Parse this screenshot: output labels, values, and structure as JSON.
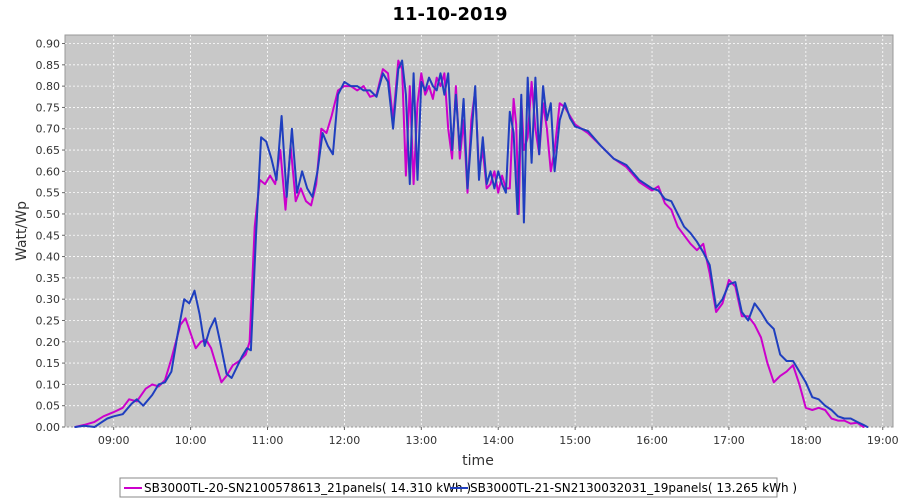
{
  "chart_data": {
    "type": "line",
    "title": "11-10-2019",
    "xlabel": "time",
    "ylabel": "Watt/Wp",
    "xlim": [
      "08:22",
      "19:08"
    ],
    "ylim": [
      0,
      0.92
    ],
    "x_ticks": [
      "09:00",
      "10:00",
      "11:00",
      "12:00",
      "13:00",
      "14:00",
      "15:00",
      "16:00",
      "17:00",
      "18:00",
      "19:00"
    ],
    "y_ticks": [
      "0.00",
      "0.05",
      "0.10",
      "0.15",
      "0.20",
      "0.25",
      "0.30",
      "0.35",
      "0.40",
      "0.45",
      "0.50",
      "0.55",
      "0.60",
      "0.65",
      "0.70",
      "0.75",
      "0.80",
      "0.85",
      "0.90"
    ],
    "grid": true,
    "legend_position": "bottom",
    "series": [
      {
        "name": "SB3000TL-20-SN2100578613_21panels( 14.310 kWh )",
        "color": "#cc00cc",
        "points": [
          [
            "08:30",
            0.0
          ],
          [
            "08:37",
            0.005
          ],
          [
            "08:45",
            0.012
          ],
          [
            "08:52",
            0.025
          ],
          [
            "09:00",
            0.035
          ],
          [
            "09:07",
            0.045
          ],
          [
            "09:12",
            0.065
          ],
          [
            "09:18",
            0.06
          ],
          [
            "09:25",
            0.09
          ],
          [
            "09:30",
            0.1
          ],
          [
            "09:35",
            0.095
          ],
          [
            "09:40",
            0.11
          ],
          [
            "09:45",
            0.16
          ],
          [
            "09:52",
            0.24
          ],
          [
            "09:56",
            0.255
          ],
          [
            "10:00",
            0.22
          ],
          [
            "10:04",
            0.185
          ],
          [
            "10:08",
            0.2
          ],
          [
            "10:12",
            0.205
          ],
          [
            "10:16",
            0.185
          ],
          [
            "10:20",
            0.145
          ],
          [
            "10:24",
            0.105
          ],
          [
            "10:28",
            0.12
          ],
          [
            "10:33",
            0.145
          ],
          [
            "10:38",
            0.155
          ],
          [
            "10:43",
            0.17
          ],
          [
            "10:46",
            0.2
          ],
          [
            "10:50",
            0.47
          ],
          [
            "10:54",
            0.58
          ],
          [
            "10:58",
            0.57
          ],
          [
            "11:02",
            0.59
          ],
          [
            "11:06",
            0.57
          ],
          [
            "11:10",
            0.65
          ],
          [
            "11:14",
            0.51
          ],
          [
            "11:18",
            0.66
          ],
          [
            "11:22",
            0.53
          ],
          [
            "11:26",
            0.56
          ],
          [
            "11:30",
            0.53
          ],
          [
            "11:34",
            0.52
          ],
          [
            "11:38",
            0.57
          ],
          [
            "11:42",
            0.7
          ],
          [
            "11:46",
            0.69
          ],
          [
            "11:50",
            0.73
          ],
          [
            "11:55",
            0.79
          ],
          [
            "12:00",
            0.8
          ],
          [
            "12:05",
            0.8
          ],
          [
            "12:10",
            0.79
          ],
          [
            "12:15",
            0.8
          ],
          [
            "12:20",
            0.775
          ],
          [
            "12:25",
            0.78
          ],
          [
            "12:30",
            0.84
          ],
          [
            "12:34",
            0.83
          ],
          [
            "12:38",
            0.72
          ],
          [
            "12:42",
            0.86
          ],
          [
            "12:45",
            0.84
          ],
          [
            "12:48",
            0.59
          ],
          [
            "12:51",
            0.8
          ],
          [
            "12:54",
            0.57
          ],
          [
            "12:57",
            0.76
          ],
          [
            "13:00",
            0.83
          ],
          [
            "13:03",
            0.78
          ],
          [
            "13:06",
            0.8
          ],
          [
            "13:09",
            0.77
          ],
          [
            "13:12",
            0.82
          ],
          [
            "13:15",
            0.8
          ],
          [
            "13:18",
            0.83
          ],
          [
            "13:21",
            0.7
          ],
          [
            "13:24",
            0.63
          ],
          [
            "13:27",
            0.8
          ],
          [
            "13:30",
            0.63
          ],
          [
            "13:33",
            0.72
          ],
          [
            "13:36",
            0.55
          ],
          [
            "13:39",
            0.72
          ],
          [
            "13:42",
            0.79
          ],
          [
            "13:45",
            0.6
          ],
          [
            "13:48",
            0.65
          ],
          [
            "13:51",
            0.56
          ],
          [
            "13:54",
            0.57
          ],
          [
            "13:57",
            0.6
          ],
          [
            "14:00",
            0.55
          ],
          [
            "14:03",
            0.59
          ],
          [
            "14:06",
            0.56
          ],
          [
            "14:09",
            0.56
          ],
          [
            "14:12",
            0.77
          ],
          [
            "14:14",
            0.71
          ],
          [
            "14:16",
            0.5
          ],
          [
            "14:18",
            0.77
          ],
          [
            "14:20",
            0.65
          ],
          [
            "14:23",
            0.68
          ],
          [
            "14:26",
            0.81
          ],
          [
            "14:29",
            0.7
          ],
          [
            "14:32",
            0.64
          ],
          [
            "14:35",
            0.76
          ],
          [
            "14:38",
            0.7
          ],
          [
            "14:41",
            0.6
          ],
          [
            "14:44",
            0.65
          ],
          [
            "14:48",
            0.76
          ],
          [
            "14:52",
            0.75
          ],
          [
            "14:56",
            0.73
          ],
          [
            "15:00",
            0.71
          ],
          [
            "15:10",
            0.69
          ],
          [
            "15:20",
            0.66
          ],
          [
            "15:30",
            0.63
          ],
          [
            "15:40",
            0.61
          ],
          [
            "15:50",
            0.575
          ],
          [
            "16:00",
            0.555
          ],
          [
            "16:05",
            0.565
          ],
          [
            "16:10",
            0.525
          ],
          [
            "16:15",
            0.51
          ],
          [
            "16:20",
            0.47
          ],
          [
            "16:25",
            0.45
          ],
          [
            "16:30",
            0.43
          ],
          [
            "16:35",
            0.415
          ],
          [
            "16:40",
            0.43
          ],
          [
            "16:45",
            0.36
          ],
          [
            "16:50",
            0.27
          ],
          [
            "16:55",
            0.29
          ],
          [
            "17:00",
            0.345
          ],
          [
            "17:05",
            0.33
          ],
          [
            "17:10",
            0.26
          ],
          [
            "17:15",
            0.26
          ],
          [
            "17:20",
            0.24
          ],
          [
            "17:25",
            0.21
          ],
          [
            "17:30",
            0.15
          ],
          [
            "17:35",
            0.105
          ],
          [
            "17:40",
            0.12
          ],
          [
            "17:45",
            0.13
          ],
          [
            "17:50",
            0.145
          ],
          [
            "17:55",
            0.1
          ],
          [
            "18:00",
            0.045
          ],
          [
            "18:05",
            0.04
          ],
          [
            "18:10",
            0.045
          ],
          [
            "18:15",
            0.04
          ],
          [
            "18:20",
            0.02
          ],
          [
            "18:25",
            0.015
          ],
          [
            "18:30",
            0.015
          ],
          [
            "18:35",
            0.008
          ],
          [
            "18:40",
            0.01
          ],
          [
            "18:45",
            0.0
          ]
        ]
      },
      {
        "name": "SB3000TL-21-SN2130032031_19panels( 13.265 kWh )",
        "color": "#1f3fbf",
        "points": [
          [
            "08:30",
            0.0
          ],
          [
            "08:37",
            0.003
          ],
          [
            "08:45",
            0.0
          ],
          [
            "08:50",
            0.01
          ],
          [
            "08:55",
            0.02
          ],
          [
            "09:00",
            0.025
          ],
          [
            "09:07",
            0.03
          ],
          [
            "09:14",
            0.055
          ],
          [
            "09:18",
            0.065
          ],
          [
            "09:23",
            0.05
          ],
          [
            "09:30",
            0.075
          ],
          [
            "09:35",
            0.1
          ],
          [
            "09:40",
            0.105
          ],
          [
            "09:45",
            0.13
          ],
          [
            "09:50",
            0.22
          ],
          [
            "09:55",
            0.3
          ],
          [
            "09:59",
            0.29
          ],
          [
            "10:03",
            0.32
          ],
          [
            "10:07",
            0.265
          ],
          [
            "10:11",
            0.19
          ],
          [
            "10:15",
            0.23
          ],
          [
            "10:19",
            0.255
          ],
          [
            "10:23",
            0.2
          ],
          [
            "10:28",
            0.125
          ],
          [
            "10:32",
            0.115
          ],
          [
            "10:36",
            0.14
          ],
          [
            "10:40",
            0.165
          ],
          [
            "10:44",
            0.185
          ],
          [
            "10:47",
            0.18
          ],
          [
            "10:51",
            0.45
          ],
          [
            "10:55",
            0.68
          ],
          [
            "10:59",
            0.67
          ],
          [
            "11:03",
            0.63
          ],
          [
            "11:07",
            0.58
          ],
          [
            "11:11",
            0.73
          ],
          [
            "11:15",
            0.54
          ],
          [
            "11:19",
            0.7
          ],
          [
            "11:23",
            0.55
          ],
          [
            "11:27",
            0.6
          ],
          [
            "11:31",
            0.56
          ],
          [
            "11:35",
            0.54
          ],
          [
            "11:39",
            0.6
          ],
          [
            "11:43",
            0.69
          ],
          [
            "11:47",
            0.66
          ],
          [
            "11:51",
            0.64
          ],
          [
            "11:55",
            0.78
          ],
          [
            "12:00",
            0.81
          ],
          [
            "12:05",
            0.8
          ],
          [
            "12:10",
            0.8
          ],
          [
            "12:15",
            0.79
          ],
          [
            "12:20",
            0.79
          ],
          [
            "12:25",
            0.775
          ],
          [
            "12:30",
            0.83
          ],
          [
            "12:34",
            0.81
          ],
          [
            "12:38",
            0.7
          ],
          [
            "12:42",
            0.84
          ],
          [
            "12:45",
            0.86
          ],
          [
            "12:48",
            0.78
          ],
          [
            "12:51",
            0.57
          ],
          [
            "12:54",
            0.83
          ],
          [
            "12:57",
            0.58
          ],
          [
            "13:00",
            0.81
          ],
          [
            "13:03",
            0.79
          ],
          [
            "13:06",
            0.82
          ],
          [
            "13:09",
            0.8
          ],
          [
            "13:12",
            0.79
          ],
          [
            "13:15",
            0.83
          ],
          [
            "13:18",
            0.78
          ],
          [
            "13:21",
            0.83
          ],
          [
            "13:24",
            0.65
          ],
          [
            "13:27",
            0.78
          ],
          [
            "13:30",
            0.65
          ],
          [
            "13:33",
            0.77
          ],
          [
            "13:36",
            0.56
          ],
          [
            "13:39",
            0.68
          ],
          [
            "13:42",
            0.8
          ],
          [
            "13:45",
            0.58
          ],
          [
            "13:48",
            0.68
          ],
          [
            "13:51",
            0.57
          ],
          [
            "13:54",
            0.6
          ],
          [
            "13:57",
            0.56
          ],
          [
            "14:00",
            0.6
          ],
          [
            "14:03",
            0.57
          ],
          [
            "14:06",
            0.55
          ],
          [
            "14:09",
            0.74
          ],
          [
            "14:12",
            0.69
          ],
          [
            "14:15",
            0.5
          ],
          [
            "14:18",
            0.78
          ],
          [
            "14:20",
            0.48
          ],
          [
            "14:23",
            0.82
          ],
          [
            "14:26",
            0.62
          ],
          [
            "14:29",
            0.82
          ],
          [
            "14:32",
            0.64
          ],
          [
            "14:35",
            0.8
          ],
          [
            "14:38",
            0.72
          ],
          [
            "14:41",
            0.76
          ],
          [
            "14:44",
            0.6
          ],
          [
            "14:48",
            0.72
          ],
          [
            "14:52",
            0.76
          ],
          [
            "14:56",
            0.725
          ],
          [
            "15:00",
            0.705
          ],
          [
            "15:10",
            0.695
          ],
          [
            "15:20",
            0.66
          ],
          [
            "15:30",
            0.63
          ],
          [
            "15:40",
            0.615
          ],
          [
            "15:50",
            0.58
          ],
          [
            "16:00",
            0.56
          ],
          [
            "16:05",
            0.555
          ],
          [
            "16:10",
            0.535
          ],
          [
            "16:15",
            0.53
          ],
          [
            "16:20",
            0.5
          ],
          [
            "16:25",
            0.47
          ],
          [
            "16:30",
            0.455
          ],
          [
            "16:35",
            0.435
          ],
          [
            "16:40",
            0.41
          ],
          [
            "16:45",
            0.38
          ],
          [
            "16:50",
            0.28
          ],
          [
            "16:55",
            0.3
          ],
          [
            "17:00",
            0.335
          ],
          [
            "17:05",
            0.34
          ],
          [
            "17:10",
            0.27
          ],
          [
            "17:15",
            0.25
          ],
          [
            "17:20",
            0.29
          ],
          [
            "17:25",
            0.27
          ],
          [
            "17:30",
            0.245
          ],
          [
            "17:35",
            0.23
          ],
          [
            "17:40",
            0.17
          ],
          [
            "17:45",
            0.155
          ],
          [
            "17:50",
            0.155
          ],
          [
            "17:55",
            0.13
          ],
          [
            "18:00",
            0.105
          ],
          [
            "18:05",
            0.07
          ],
          [
            "18:10",
            0.065
          ],
          [
            "18:15",
            0.05
          ],
          [
            "18:20",
            0.04
          ],
          [
            "18:25",
            0.025
          ],
          [
            "18:30",
            0.02
          ],
          [
            "18:35",
            0.02
          ],
          [
            "18:40",
            0.012
          ],
          [
            "18:45",
            0.005
          ],
          [
            "18:48",
            0.0
          ]
        ]
      }
    ]
  }
}
